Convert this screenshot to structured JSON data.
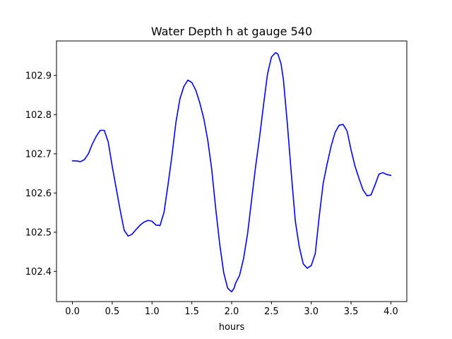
{
  "chart_data": {
    "type": "line",
    "title": "Water Depth h at gauge 540",
    "xlabel": "hours",
    "ylabel": "",
    "xlim": [
      -0.2,
      4.2
    ],
    "ylim": [
      102.323,
      102.988
    ],
    "xticks": [
      0.0,
      0.5,
      1.0,
      1.5,
      2.0,
      2.5,
      3.0,
      3.5,
      4.0
    ],
    "xtick_labels": [
      "0.0",
      "0.5",
      "1.0",
      "1.5",
      "2.0",
      "2.5",
      "3.0",
      "3.5",
      "4.0"
    ],
    "yticks": [
      102.4,
      102.5,
      102.6,
      102.7,
      102.8,
      102.9
    ],
    "ytick_labels": [
      "102.4",
      "102.5",
      "102.6",
      "102.7",
      "102.8",
      "102.9"
    ],
    "grid": false,
    "series": [
      {
        "color": "#0000ff",
        "x": [
          0.0,
          0.05,
          0.1,
          0.15,
          0.2,
          0.25,
          0.3,
          0.35,
          0.4,
          0.45,
          0.5,
          0.55,
          0.6,
          0.65,
          0.7,
          0.75,
          0.8,
          0.85,
          0.9,
          0.95,
          1.0,
          1.05,
          1.1,
          1.15,
          1.2,
          1.25,
          1.3,
          1.35,
          1.4,
          1.45,
          1.5,
          1.55,
          1.6,
          1.65,
          1.7,
          1.75,
          1.8,
          1.85,
          1.9,
          1.95,
          2.0,
          2.03,
          2.05,
          2.1,
          2.15,
          2.2,
          2.25,
          2.3,
          2.35,
          2.4,
          2.45,
          2.5,
          2.55,
          2.58,
          2.62,
          2.65,
          2.7,
          2.75,
          2.8,
          2.85,
          2.9,
          2.95,
          3.0,
          3.05,
          3.1,
          3.15,
          3.2,
          3.25,
          3.3,
          3.35,
          3.4,
          3.45,
          3.5,
          3.55,
          3.6,
          3.65,
          3.7,
          3.75,
          3.8,
          3.85,
          3.9,
          3.95,
          4.0
        ],
        "y": [
          102.682,
          102.682,
          102.68,
          102.685,
          102.7,
          102.725,
          102.745,
          102.76,
          102.76,
          102.73,
          102.668,
          102.612,
          102.556,
          102.505,
          102.49,
          102.495,
          102.507,
          102.518,
          102.526,
          102.53,
          102.528,
          102.518,
          102.517,
          102.55,
          102.62,
          102.695,
          102.78,
          102.84,
          102.872,
          102.888,
          102.882,
          102.862,
          102.83,
          102.79,
          102.735,
          102.66,
          102.56,
          102.47,
          102.397,
          102.357,
          102.348,
          102.357,
          102.37,
          102.39,
          102.433,
          102.496,
          102.581,
          102.666,
          102.741,
          102.824,
          102.903,
          102.947,
          102.958,
          102.955,
          102.93,
          102.89,
          102.776,
          102.648,
          102.528,
          102.462,
          102.419,
          102.408,
          102.415,
          102.445,
          102.54,
          102.625,
          102.675,
          102.72,
          102.755,
          102.773,
          102.775,
          102.758,
          102.71,
          102.668,
          102.637,
          102.608,
          102.593,
          102.595,
          102.62,
          102.648,
          102.652,
          102.647,
          102.645
        ]
      }
    ]
  }
}
